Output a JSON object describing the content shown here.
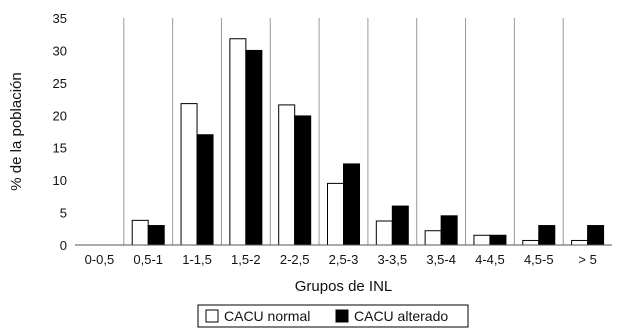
{
  "chart_data": {
    "type": "bar",
    "xlabel": "Grupos de INL",
    "ylabel": "% de la población",
    "ylim": [
      0,
      35
    ],
    "yticks": [
      0,
      5,
      10,
      15,
      20,
      25,
      30,
      35
    ],
    "grid": "vertical separators between categories",
    "legend_position": "bottom-center",
    "categories": [
      "0-0,5",
      "0,5-1",
      "1-1,5",
      "1,5-2",
      "2-2,5",
      "2,5-3",
      "3-3,5",
      "3,5-4",
      "4-4,5",
      "4,5-5",
      "> 5"
    ],
    "series": [
      {
        "name": "CACU normal",
        "color": "#ffffff",
        "stroke": "#000000",
        "values": [
          0,
          3.8,
          21.8,
          31.8,
          21.6,
          9.5,
          3.7,
          2.2,
          1.5,
          0.7,
          0.7
        ]
      },
      {
        "name": "CACU alterado",
        "color": "#000000",
        "stroke": "#000000",
        "values": [
          0,
          3.0,
          17.0,
          30.0,
          19.9,
          12.5,
          6.0,
          4.5,
          1.5,
          3.0,
          3.0
        ]
      }
    ]
  }
}
